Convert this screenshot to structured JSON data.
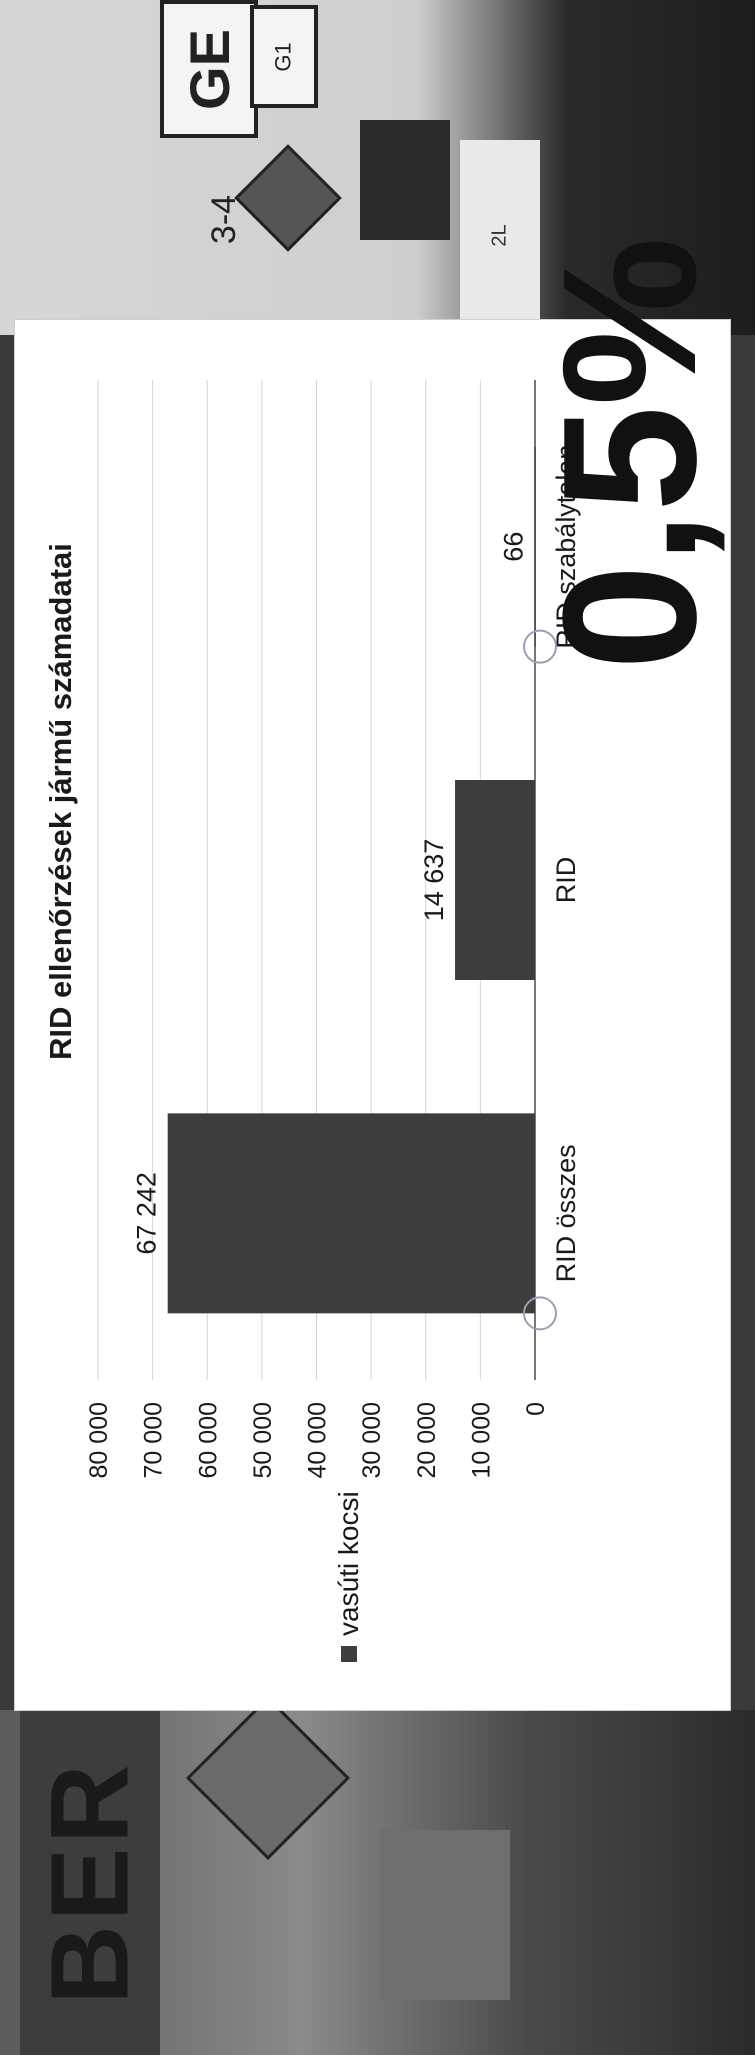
{
  "photo": {
    "sign_top": "GE",
    "sign_top_small": "G1",
    "sign_bottom": "BER",
    "marker_top": "3-4",
    "label_2l": "2L"
  },
  "chart_data": {
    "type": "bar",
    "title": "RID ellenőrzések jármű számadatai",
    "categories": [
      "RID összes",
      "RID",
      "RID szabálytalan"
    ],
    "series": [
      {
        "name": "vasúti kocsi",
        "values": [
          67242,
          14637,
          66
        ]
      }
    ],
    "data_labels": [
      "67 242",
      "14 637",
      "66"
    ],
    "ylim": [
      0,
      80000
    ],
    "yticks": [
      0,
      10000,
      20000,
      30000,
      40000,
      50000,
      60000,
      70000,
      80000
    ],
    "ytick_labels": [
      "0",
      "10 000",
      "20 000",
      "30 000",
      "40 000",
      "50 000",
      "60 000",
      "70 000",
      "80 000"
    ],
    "grid": true,
    "legend_position": "left",
    "bar_color": "#3d3d3d",
    "annotation": "0,5%"
  }
}
